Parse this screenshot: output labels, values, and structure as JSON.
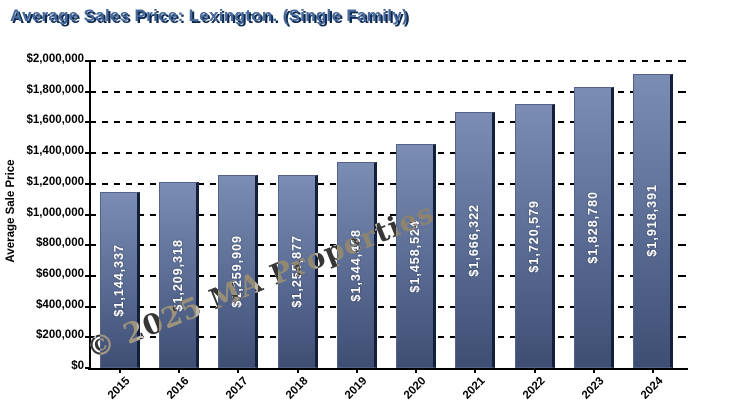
{
  "title": "Average Sales Price: Lexington. (Single Family)",
  "watermark": "© 2025 MA Properties",
  "colors": {
    "background": "#ffffff",
    "title_fill": "#47699c",
    "title_shadow": "#0e2a50",
    "axis": "#000000",
    "tick_text": "#000000",
    "bar_gradient_top": "#7b8db2",
    "bar_gradient_bottom": "#3e4e73",
    "bar_right_edge": "#141f3c",
    "value_label": "#ffffff"
  },
  "chart_data": {
    "type": "bar",
    "title": "Average Sales Price: Lexington. (Single Family)",
    "categories": [
      "2015",
      "2016",
      "2017",
      "2018",
      "2019",
      "2020",
      "2021",
      "2022",
      "2023",
      "2024"
    ],
    "values": [
      1144337,
      1209318,
      1259909,
      1255877,
      1344488,
      1458524,
      1666322,
      1720579,
      1828780,
      1918391
    ],
    "value_labels": [
      "$1,144,337",
      "$1,209,318",
      "$1,259,909",
      "$1,255,877",
      "$1,344,488",
      "$1,458,524",
      "$1,666,322",
      "$1,720,579",
      "$1,828,780",
      "$1,918,391"
    ],
    "xlabel": "",
    "ylabel": "Average Sale Price",
    "ylim": [
      0,
      2000000
    ],
    "ytick_interval": 200000,
    "ytick_labels": [
      "$0",
      "$200,000",
      "$400,000",
      "$600,000",
      "$800,000",
      "$1,000,000",
      "$1,200,000",
      "$1,400,000",
      "$1,600,000",
      "$1,800,000",
      "$2,000,000"
    ],
    "grid": "horizontal-dashed",
    "legend": "none",
    "value_labels_rotation": "vertical-bottom-to-top",
    "xtick_rotation": -45
  }
}
